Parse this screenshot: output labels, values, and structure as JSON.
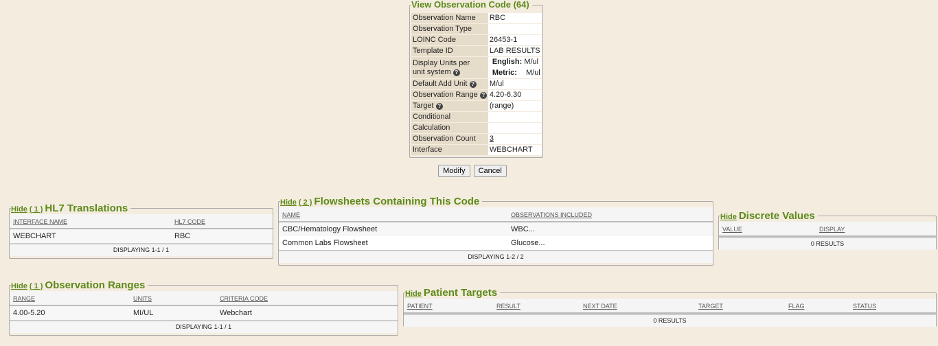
{
  "main": {
    "title": "View Observation Code (64)",
    "rows": [
      {
        "label": "Observation Name",
        "value": "RBC"
      },
      {
        "label": "Observation Type",
        "value": ""
      },
      {
        "label": "LOINC Code",
        "value": "26453-1"
      },
      {
        "label": "Template ID",
        "value": "LAB RESULTS"
      },
      {
        "label": "Display Units per unit system",
        "help": true,
        "units": {
          "english_label": "English:",
          "english": "M/ul",
          "metric_label": "Metric:",
          "metric": "M/ul"
        }
      },
      {
        "label": "Default Add Unit",
        "help": true,
        "value": "M/ul"
      },
      {
        "label": "Observation Range",
        "help": true,
        "value": "4.20-6.30"
      },
      {
        "label": "Target",
        "help": true,
        "value": "(range)"
      },
      {
        "label": "Conditional",
        "value": ""
      },
      {
        "label": "Calculation",
        "value": ""
      },
      {
        "label": "Observation Count",
        "value": "3",
        "link": true
      },
      {
        "label": "Interface",
        "value": "WEBCHART"
      }
    ],
    "modify": "Modify",
    "cancel": "Cancel"
  },
  "panels": [
    {
      "id": "hl7",
      "hide": "Hide",
      "count": "( 1 )",
      "title": "HL7 Translations",
      "columns": [
        "INTERFACE NAME",
        "HL7 CODE"
      ],
      "rows": [
        [
          "WEBCHART",
          "RBC"
        ]
      ],
      "footer": "DISPLAYING 1-1 / 1"
    },
    {
      "id": "flowsheets",
      "hide": "Hide",
      "count": "( 2 )",
      "title": "Flowsheets Containing This Code",
      "columns": [
        "NAME",
        "OBSERVATIONS INCLUDED"
      ],
      "rows": [
        [
          "CBC/Hematology Flowsheet",
          "WBC..."
        ],
        [
          "Common Labs Flowsheet",
          "Glucose..."
        ]
      ],
      "footer": "DISPLAYING 1-2 / 2"
    },
    {
      "id": "discrete",
      "hide": "Hide",
      "count": "",
      "title": "Discrete Values",
      "columns": [
        "VALUE",
        "DISPLAY"
      ],
      "rows": [],
      "footer": "0 RESULTS"
    },
    {
      "id": "ranges",
      "hide": "Hide",
      "count": "( 1 )",
      "title": "Observation Ranges",
      "columns": [
        "RANGE",
        "UNITS",
        "CRITERIA CODE"
      ],
      "rows": [
        [
          "4.00-5.20",
          "MI/UL",
          "Webchart"
        ]
      ],
      "footer": "DISPLAYING 1-1 / 1"
    },
    {
      "id": "targets",
      "hide": "Hide",
      "count": "",
      "title": "Patient Targets",
      "columns": [
        "PATIENT",
        "RESULT",
        "NEXT DATE",
        "TARGET",
        "FLAG",
        "STATUS"
      ],
      "rows": [],
      "footer": "0 RESULTS"
    }
  ]
}
